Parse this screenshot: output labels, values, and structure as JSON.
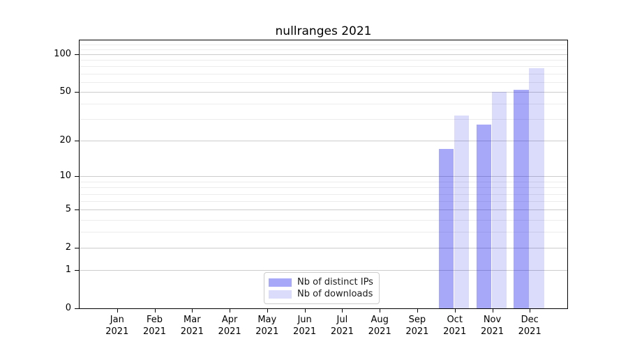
{
  "chart_data": {
    "type": "bar",
    "title": "nullranges 2021",
    "categories": [
      "Jan",
      "Feb",
      "Mar",
      "Apr",
      "May",
      "Jun",
      "Jul",
      "Aug",
      "Sep",
      "Oct",
      "Nov",
      "Dec"
    ],
    "category_sublabel": "2021",
    "series": [
      {
        "name": "Nb of distinct IPs",
        "color": "rgba(15,15,235,0.36)",
        "values": [
          0,
          0,
          0,
          0,
          0,
          0,
          0,
          0,
          0,
          17,
          27,
          52
        ]
      },
      {
        "name": "Nb of downloads",
        "color": "rgba(15,15,235,0.15)",
        "values": [
          0,
          0,
          0,
          0,
          0,
          0,
          0,
          0,
          0,
          32,
          50,
          77
        ]
      }
    ],
    "yscale": "log1p",
    "yticks": [
      0,
      1,
      2,
      5,
      10,
      20,
      50,
      100
    ],
    "minor_yticks": [
      3,
      4,
      6,
      7,
      8,
      9,
      30,
      40,
      60,
      70,
      80,
      90,
      110,
      120
    ],
    "ylim": [
      0,
      129
    ],
    "xlabel": "",
    "ylabel": "",
    "grid": true,
    "legend_position": "lower center"
  },
  "colors": {
    "grid_major": "#cccccc",
    "grid_minor": "#ececec",
    "axis": "#000000",
    "legend_border": "#cccccc"
  }
}
